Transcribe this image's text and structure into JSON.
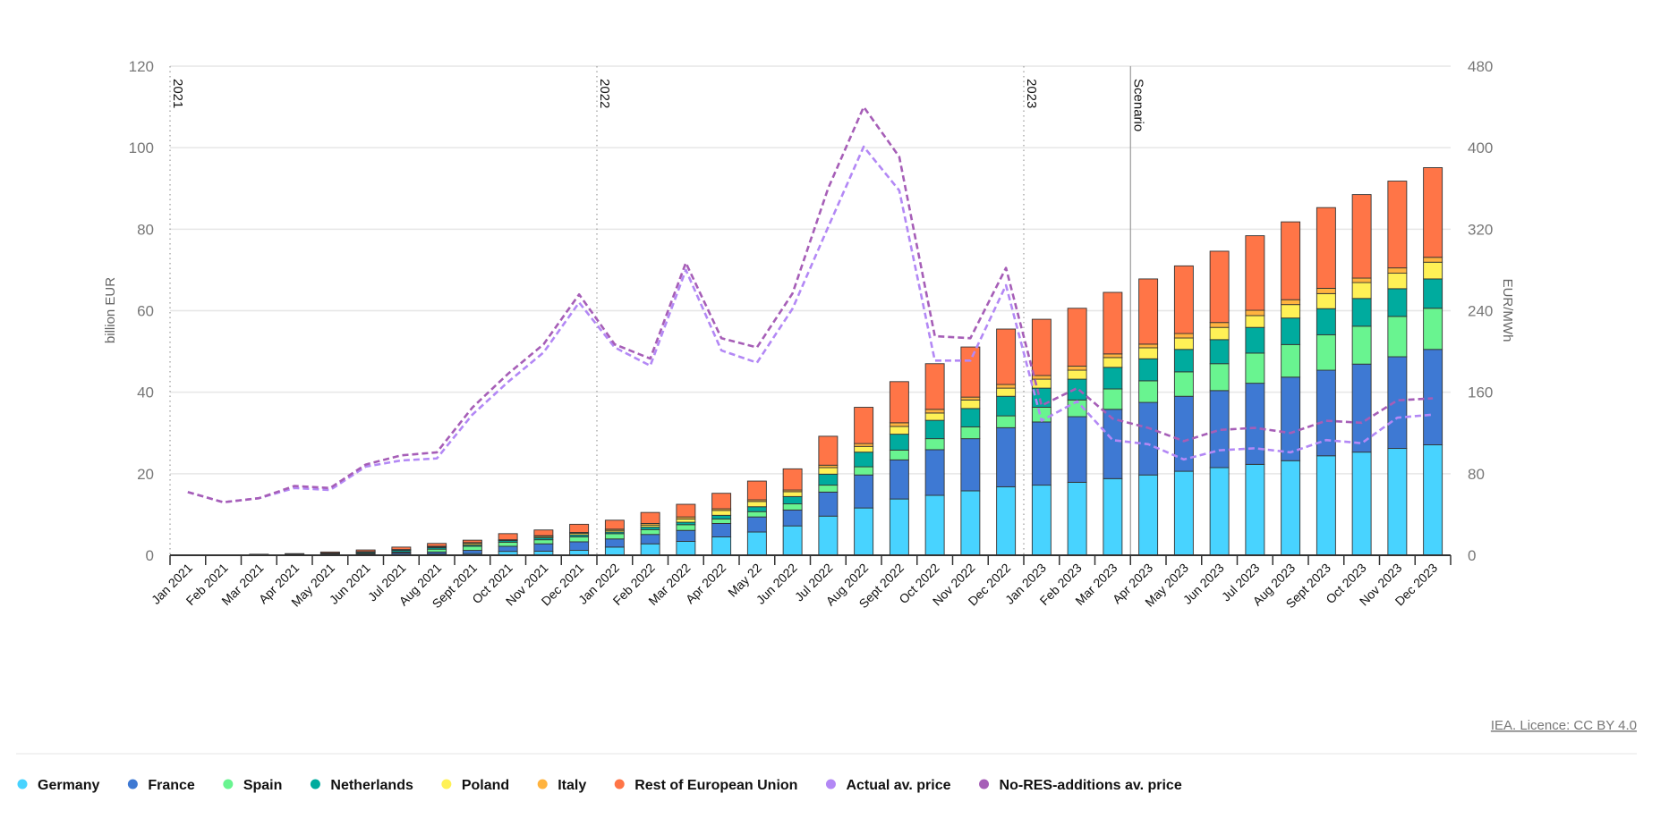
{
  "chart_data": {
    "type": "bar",
    "stacked": true,
    "title": "",
    "xlabel": "",
    "ylabel": "billion EUR",
    "ylabel_right": "EUR/MWh",
    "ylim": [
      0,
      120
    ],
    "ylim_right": [
      0,
      480
    ],
    "yticks": [
      0,
      20,
      40,
      60,
      80,
      100,
      120
    ],
    "yticks_right": [
      0,
      80,
      160,
      240,
      320,
      400,
      480
    ],
    "grid": true,
    "legend_position": "bottom-left",
    "categories": [
      "Jan 2021",
      "Feb 2021",
      "Mar 2021",
      "Apr 2021",
      "May 2021",
      "Jun 2021",
      "Jul 2021",
      "Aug 2021",
      "Sept 2021",
      "Oct 2021",
      "Nov 2021",
      "Dec 2021",
      "Jan 2022",
      "Feb 2022",
      "Mar 2022",
      "Apr 2022",
      "May 22",
      "Jun 2022",
      "Jul 2022",
      "Aug 2022",
      "Sept 2022",
      "Oct 2022",
      "Nov 2022",
      "Dec 2022",
      "Jan 2023",
      "Feb 2023",
      "Mar 2023",
      "Apr 2023",
      "May 2023",
      "Jun 2023",
      "Jul 2023",
      "Aug 2023",
      "Sept 2023",
      "Oct 2023",
      "Nov 2023",
      "Dec 2023"
    ],
    "series": [
      {
        "name": "Germany",
        "color": "#48d3ff",
        "values": [
          0,
          0,
          0.01,
          0.02,
          0.05,
          0.1,
          0.2,
          0.3,
          0.4,
          0.95,
          1.0,
          1.2,
          2.0,
          2.8,
          3.4,
          4.5,
          5.7,
          7.2,
          9.6,
          11.6,
          13.8,
          14.7,
          15.8,
          16.8,
          17.2,
          17.9,
          18.8,
          19.7,
          20.6,
          21.5,
          22.3,
          23.2,
          24.4,
          25.3,
          26.2,
          27.1
        ]
      },
      {
        "name": "France",
        "color": "#3e79d3",
        "values": [
          0,
          0.01,
          0.03,
          0.05,
          0.1,
          0.2,
          0.4,
          0.5,
          0.8,
          1.25,
          1.8,
          2.1,
          2.0,
          2.3,
          2.7,
          3.3,
          3.7,
          3.9,
          5.9,
          8.1,
          9.6,
          11.2,
          12.8,
          14.5,
          15.5,
          16.1,
          17.0,
          17.8,
          18.4,
          18.9,
          19.9,
          20.5,
          21.0,
          21.6,
          22.5,
          23.4
        ]
      },
      {
        "name": "Spain",
        "color": "#69f490",
        "values": [
          0,
          0.01,
          0.04,
          0.08,
          0.15,
          0.2,
          0.2,
          0.7,
          1.0,
          1.0,
          1.0,
          1.2,
          1.3,
          1.2,
          1.4,
          1.1,
          1.3,
          1.5,
          1.7,
          2.0,
          2.4,
          2.7,
          2.9,
          2.9,
          3.6,
          4.1,
          5.0,
          5.3,
          6.0,
          6.6,
          7.4,
          8.0,
          8.7,
          9.3,
          9.9,
          10.1
        ]
      },
      {
        "name": "Netherlands",
        "color": "#00ab9e",
        "values": [
          0,
          0.02,
          0.06,
          0.1,
          0.2,
          0.3,
          0.4,
          0.4,
          0.3,
          0.4,
          0.5,
          0.5,
          0.4,
          0.6,
          0.6,
          0.9,
          1.2,
          1.8,
          2.7,
          3.6,
          3.9,
          4.5,
          4.5,
          4.8,
          4.7,
          5.1,
          5.3,
          5.4,
          5.5,
          5.9,
          6.3,
          6.5,
          6.4,
          6.8,
          6.8,
          7.2
        ]
      },
      {
        "name": "Poland",
        "color": "#fff156",
        "values": [
          0,
          0,
          0.01,
          0.02,
          0.02,
          0.05,
          0.1,
          0.2,
          0.4,
          0.1,
          0.3,
          0.4,
          0.4,
          0.5,
          0.8,
          1.2,
          1.3,
          1.2,
          1.6,
          1.4,
          1.9,
          1.8,
          2.1,
          2.0,
          2.2,
          2.2,
          2.4,
          2.7,
          2.8,
          3.0,
          2.9,
          3.3,
          3.7,
          3.9,
          3.8,
          4.1
        ]
      },
      {
        "name": "Italy",
        "color": "#ffb33f",
        "values": [
          0,
          0.01,
          0.01,
          0.01,
          0.03,
          0.05,
          0.1,
          0.1,
          0.2,
          0.1,
          0.2,
          0.2,
          0.3,
          0.4,
          0.5,
          0.4,
          0.4,
          0.4,
          0.6,
          0.7,
          0.9,
          0.9,
          0.7,
          0.9,
          0.9,
          1.0,
          0.9,
          0.9,
          1.1,
          1.2,
          1.3,
          1.2,
          1.3,
          1.1,
          1.3,
          1.2
        ]
      },
      {
        "name": "Rest of European Union",
        "color": "#ff7547",
        "values": [
          0,
          0.03,
          0.09,
          0.12,
          0.25,
          0.4,
          0.6,
          0.7,
          0.6,
          1.5,
          1.4,
          2.0,
          2.2,
          2.7,
          3.1,
          3.8,
          4.6,
          5.2,
          7.1,
          8.9,
          10.1,
          11.2,
          12.3,
          13.6,
          13.8,
          14.2,
          15.1,
          16.0,
          16.6,
          17.5,
          18.3,
          19.1,
          19.8,
          20.5,
          21.3,
          22.0
        ]
      }
    ],
    "line_series": [
      {
        "name": "Actual av. price",
        "color": "#b388f5",
        "axis": "right",
        "values": [
          62,
          52,
          56,
          66,
          64,
          87,
          93,
          95,
          138,
          170,
          199,
          248,
          204,
          186,
          280,
          201,
          189,
          242,
          322,
          401,
          358,
          191,
          191,
          265,
          132,
          151,
          113,
          109,
          94,
          103,
          105,
          101,
          113,
          110,
          135,
          138
        ]
      },
      {
        "name": "No-RES-additions av. price",
        "color": "#a65eb7",
        "axis": "right",
        "values": [
          62,
          52,
          56,
          68,
          66,
          89,
          98,
          101,
          145,
          178,
          207,
          256,
          207,
          193,
          287,
          213,
          204,
          257,
          360,
          440,
          391,
          215,
          213,
          282,
          147,
          164,
          134,
          125,
          112,
          123,
          125,
          120,
          132,
          130,
          152,
          154
        ]
      }
    ],
    "annotations": [
      {
        "label": "2021",
        "at": "Jan 2021",
        "style": "dotted"
      },
      {
        "label": "2022",
        "at": "Jan 2022",
        "style": "dotted"
      },
      {
        "label": "2023",
        "at": "Jan 2023",
        "style": "dotted"
      },
      {
        "label": "Scenario",
        "at": "Apr 2023",
        "style": "solid"
      }
    ]
  },
  "footer": {
    "licence": "IEA. Licence: CC BY 4.0"
  }
}
